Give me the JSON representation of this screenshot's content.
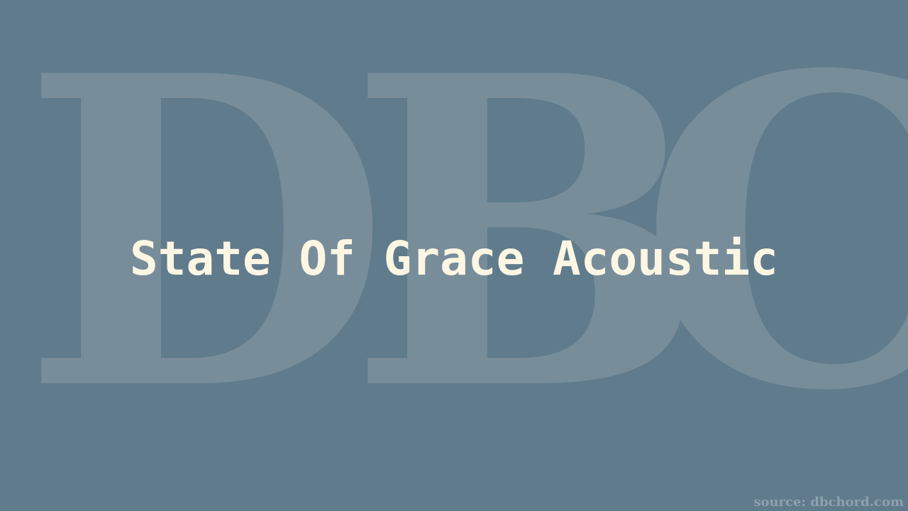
{
  "watermark": {
    "letters": [
      "D",
      "B",
      "C"
    ]
  },
  "title": "State Of Grace Acoustic",
  "source": "source: dbchord.com",
  "colors": {
    "background": "#5f7b8c",
    "watermark": "#788d9a",
    "title": "#fdf6e3",
    "source": "#8ea1ad"
  }
}
